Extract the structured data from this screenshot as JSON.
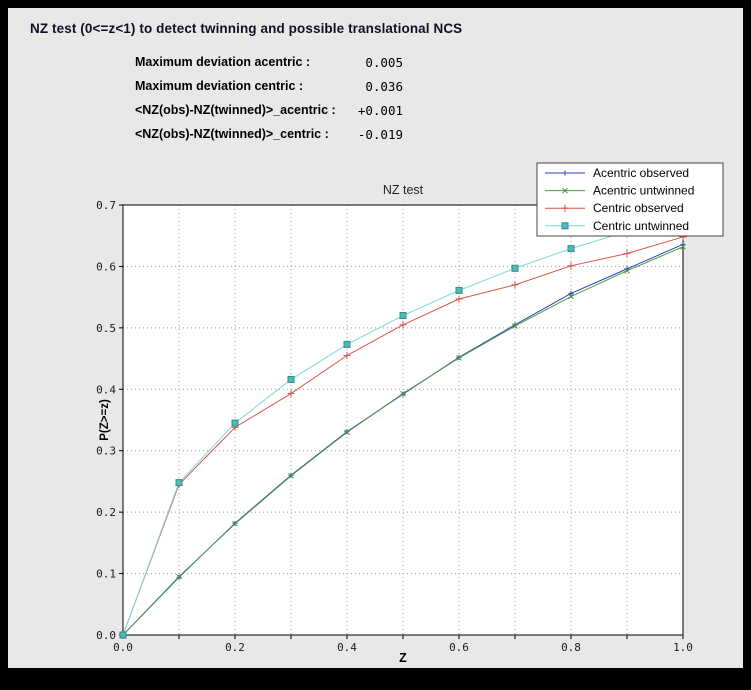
{
  "header": {
    "title": "NZ test (0<=z<1) to detect twinning and possible translational NCS"
  },
  "stats": [
    {
      "label": "Maximum deviation acentric :",
      "value": "0.005"
    },
    {
      "label": "Maximum deviation centric :",
      "value": "0.036"
    },
    {
      "label": "<NZ(obs)-NZ(twinned)>_acentric :",
      "value": "+0.001"
    },
    {
      "label": "<NZ(obs)-NZ(twinned)>_centric :",
      "value": "-0.019"
    }
  ],
  "chart_data": {
    "type": "line",
    "title": "NZ test",
    "xlabel": "Z",
    "ylabel": "P(Z>=z)",
    "xlim": [
      0.0,
      1.0
    ],
    "ylim": [
      0.0,
      0.7
    ],
    "grid": "dotted",
    "legend_position": "top-right",
    "xticks": [
      0.0,
      0.2,
      0.4,
      0.6,
      0.8,
      1.0
    ],
    "xtick_labels": [
      "0.0",
      "0.2",
      "0.4",
      "0.6",
      "0.8",
      "1.0"
    ],
    "xticks_minor": [
      0.0,
      0.1,
      0.2,
      0.3,
      0.4,
      0.5,
      0.6,
      0.7,
      0.8,
      0.9,
      1.0
    ],
    "yticks": [
      0.0,
      0.1,
      0.2,
      0.3,
      0.4,
      0.5,
      0.6,
      0.7
    ],
    "ytick_labels": [
      "0.0",
      "0.1",
      "0.2",
      "0.3",
      "0.4",
      "0.5",
      "0.6",
      "0.7"
    ],
    "xgrid": [
      0.1,
      0.2,
      0.3,
      0.4,
      0.5,
      0.6,
      0.7,
      0.8,
      0.9
    ],
    "ygrid": [
      0.1,
      0.2,
      0.3,
      0.4,
      0.5,
      0.6
    ],
    "x": [
      0.0,
      0.1,
      0.2,
      0.3,
      0.4,
      0.5,
      0.6,
      0.7,
      0.8,
      0.9,
      1.0
    ],
    "series": [
      {
        "name": "Acentric observed",
        "color": "#2b3fbf",
        "marker": "plus",
        "marker_size": 2.5,
        "values": [
          0.0,
          0.094,
          0.182,
          0.26,
          0.331,
          0.392,
          0.452,
          0.505,
          0.556,
          0.596,
          0.636
        ]
      },
      {
        "name": "Acentric untwinned",
        "color": "#4f9a3e",
        "marker": "x",
        "marker_size": 2.5,
        "values": [
          0.0,
          0.095,
          0.181,
          0.259,
          0.33,
          0.393,
          0.451,
          0.503,
          0.551,
          0.593,
          0.632
        ]
      },
      {
        "name": "Centric observed",
        "color": "#d9534a",
        "marker": "plus",
        "marker_size": 3.5,
        "values": [
          0.0,
          0.245,
          0.338,
          0.393,
          0.455,
          0.505,
          0.547,
          0.57,
          0.601,
          0.621,
          0.648
        ]
      },
      {
        "name": "Centric untwinned",
        "color": "#7fd8d8",
        "marker": "square",
        "marker_size": 3,
        "marker_fill": "#53b8b8",
        "marker_edge": "#2e8b8b",
        "values": [
          0.0,
          0.248,
          0.345,
          0.416,
          0.473,
          0.52,
          0.561,
          0.597,
          0.629,
          0.657,
          0.683
        ]
      }
    ]
  }
}
